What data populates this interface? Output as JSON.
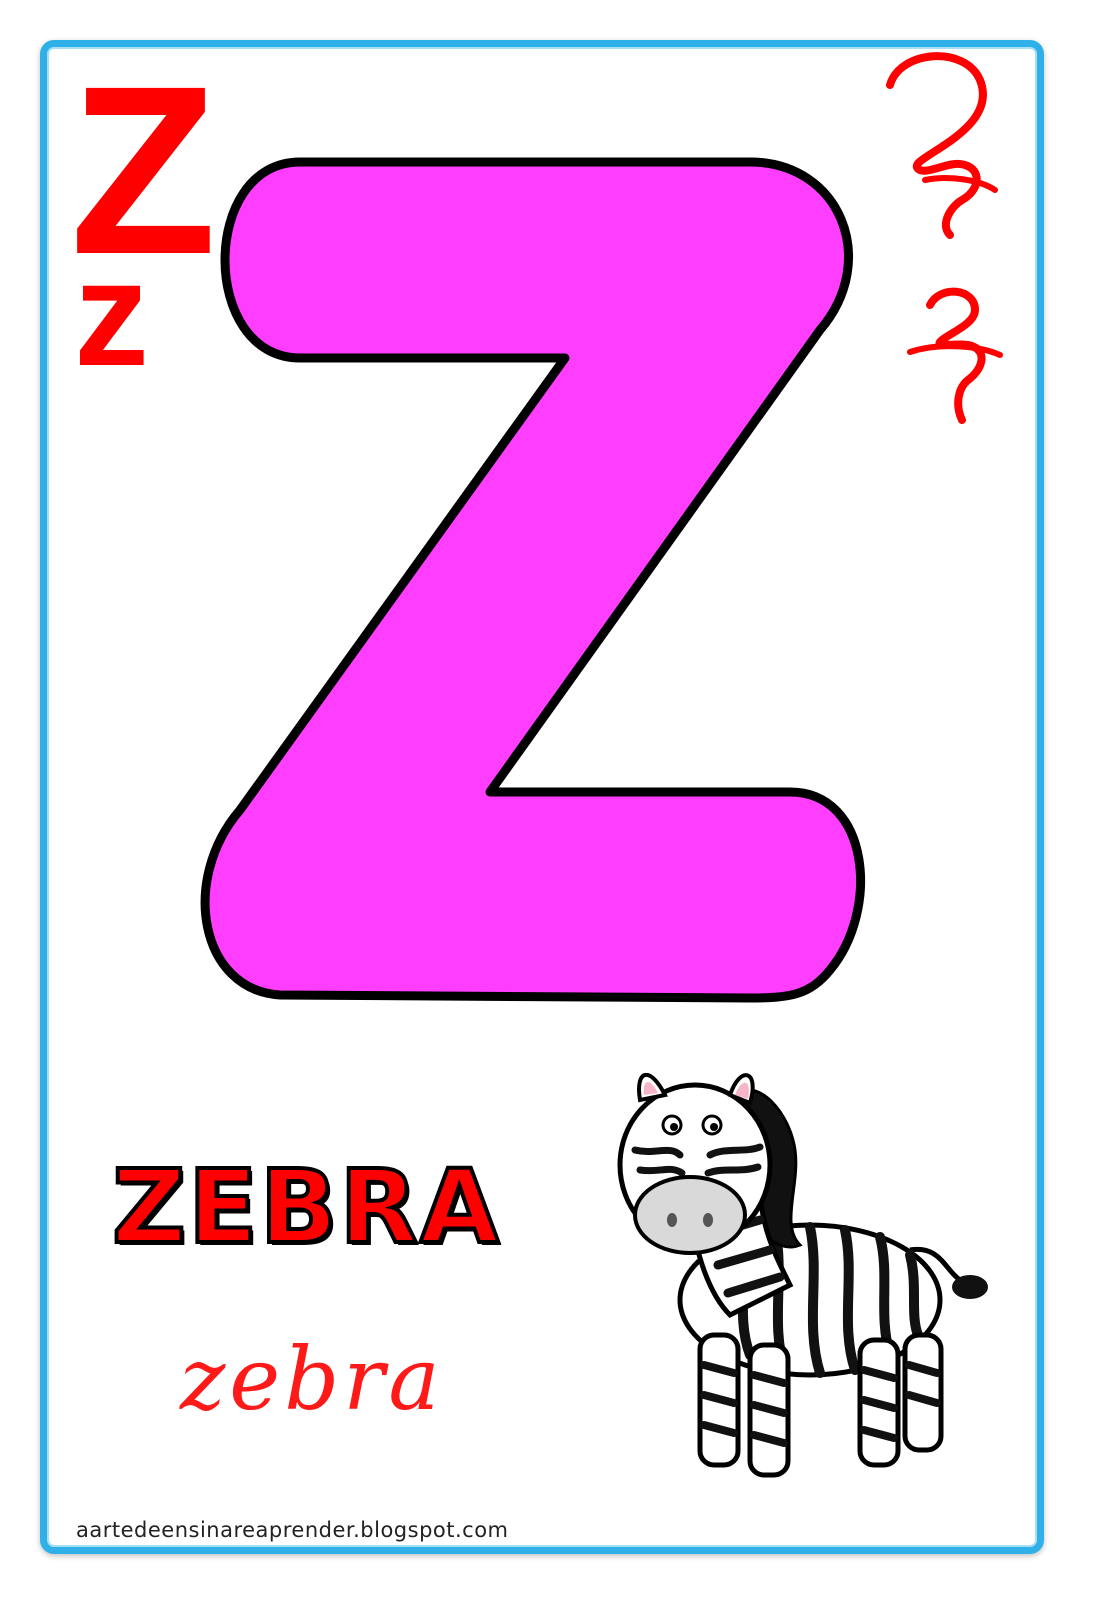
{
  "letter": {
    "upper_print": "Z",
    "lower_print": "z",
    "big": "Z"
  },
  "word": {
    "print": "ZEBRA",
    "cursive": "zebra"
  },
  "credit": "aartedeensinareaprender.blogspot.com",
  "colors": {
    "border": "#2fb0e8",
    "letter_fill": "#ff3dff",
    "accent_red": "#ff0000"
  },
  "icons": [
    "zebra-illustration",
    "cursive-uppercase-z",
    "cursive-lowercase-z"
  ]
}
